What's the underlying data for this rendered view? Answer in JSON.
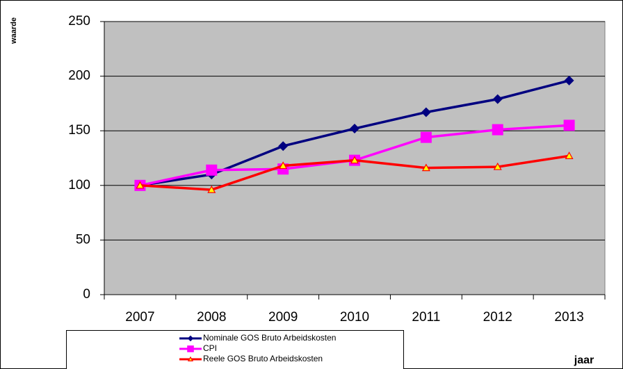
{
  "chart_data": {
    "type": "line",
    "x_label": "jaar",
    "y_label": "waarde",
    "categories": [
      "2007",
      "2008",
      "2009",
      "2010",
      "2011",
      "2012",
      "2013"
    ],
    "series": [
      {
        "name": "Nominale GOS Bruto Arbeidskosten",
        "color": "#000080",
        "marker": "diamond",
        "values": [
          100,
          110,
          136,
          152,
          167,
          179,
          196
        ]
      },
      {
        "name": "CPI",
        "color": "#ff00ff",
        "marker": "square",
        "values": [
          100,
          114,
          115,
          123,
          144,
          151,
          155
        ]
      },
      {
        "name": "Reele GOS Bruto Arbeidskosten",
        "color": "#ff0000",
        "marker": "triangle",
        "values": [
          100,
          96,
          118,
          123,
          116,
          117,
          127
        ]
      }
    ],
    "ylim": [
      0,
      250
    ],
    "yticks": [
      0,
      50,
      100,
      150,
      200,
      250
    ],
    "grid": true
  }
}
